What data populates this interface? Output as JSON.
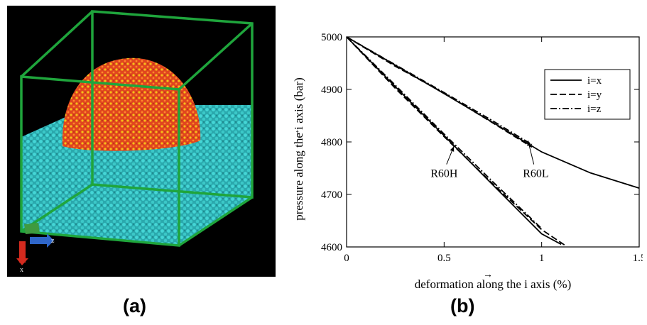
{
  "panel_labels": {
    "a": "(a)",
    "b": "(b)"
  },
  "panel_a": {
    "axis_triad": {
      "x_label": "x",
      "z_label": "z"
    },
    "colors": {
      "background": "#000000",
      "box": "#1fa53c",
      "droplet": "#e0461e",
      "substrate": "#35c4c4"
    }
  },
  "chart_data": {
    "type": "line",
    "xlabel": "deformation along the i axis (%)",
    "ylabel": "pressure along the i axis (bar)",
    "xlim": [
      0,
      1.5
    ],
    "ylim": [
      4600,
      5000
    ],
    "xticks": [
      {
        "value": 0,
        "label": "0"
      },
      {
        "value": 0.5,
        "label": "0.5"
      },
      {
        "value": 1,
        "label": "1"
      },
      {
        "value": 1.5,
        "label": "1.5"
      }
    ],
    "yticks": [
      {
        "value": 4600,
        "label": "4600"
      },
      {
        "value": 4700,
        "label": "4700"
      },
      {
        "value": 4800,
        "label": "4800"
      },
      {
        "value": 4900,
        "label": "4900"
      },
      {
        "value": 5000,
        "label": "5000"
      }
    ],
    "grid": false,
    "legend_position": "top-right",
    "legend": [
      {
        "label": "i=x",
        "dash": "solid"
      },
      {
        "label": "i=y",
        "dash": "dashed"
      },
      {
        "label": "i=z",
        "dash": "dash-dot"
      }
    ],
    "series": [
      {
        "group": "R60L",
        "label": "i=x",
        "dash": "solid",
        "x": [
          0,
          0.25,
          0.5,
          0.75,
          1.0,
          1.25,
          1.5
        ],
        "y": [
          5000,
          4946,
          4892,
          4837,
          4781,
          4741,
          4712
        ]
      },
      {
        "group": "R60L",
        "label": "i=y",
        "dash": "dashed",
        "x": [
          0,
          0.25,
          0.5,
          0.75,
          0.95
        ],
        "y": [
          5000,
          4944,
          4893,
          4836,
          4790
        ]
      },
      {
        "group": "R60L",
        "label": "i=z",
        "dash": "dash-dot",
        "x": [
          0,
          0.25,
          0.5,
          0.75,
          0.95
        ],
        "y": [
          5000,
          4947,
          4894,
          4840,
          4795
        ]
      },
      {
        "group": "R60H",
        "label": "i=x",
        "dash": "solid",
        "x": [
          0,
          0.25,
          0.5,
          0.75,
          1.0,
          1.1
        ],
        "y": [
          5000,
          4905,
          4812,
          4718,
          4625,
          4605
        ]
      },
      {
        "group": "R60H",
        "label": "i=y",
        "dash": "dashed",
        "x": [
          0,
          0.25,
          0.5,
          0.75,
          1.0,
          1.12
        ],
        "y": [
          5000,
          4902,
          4810,
          4720,
          4633,
          4603
        ]
      },
      {
        "group": "R60H",
        "label": "i=z",
        "dash": "dash-dot",
        "x": [
          0,
          0.25,
          0.5,
          0.75,
          1.0
        ],
        "y": [
          5000,
          4908,
          4815,
          4724,
          4635
        ]
      }
    ],
    "annotations": [
      {
        "text": "R60L",
        "text_x": 0.97,
        "text_y": 4733,
        "arrow_to_x": 0.93,
        "arrow_to_y": 4808
      },
      {
        "text": "R60H",
        "text_x": 0.5,
        "text_y": 4733,
        "arrow_to_x": 0.55,
        "arrow_to_y": 4797
      }
    ]
  }
}
